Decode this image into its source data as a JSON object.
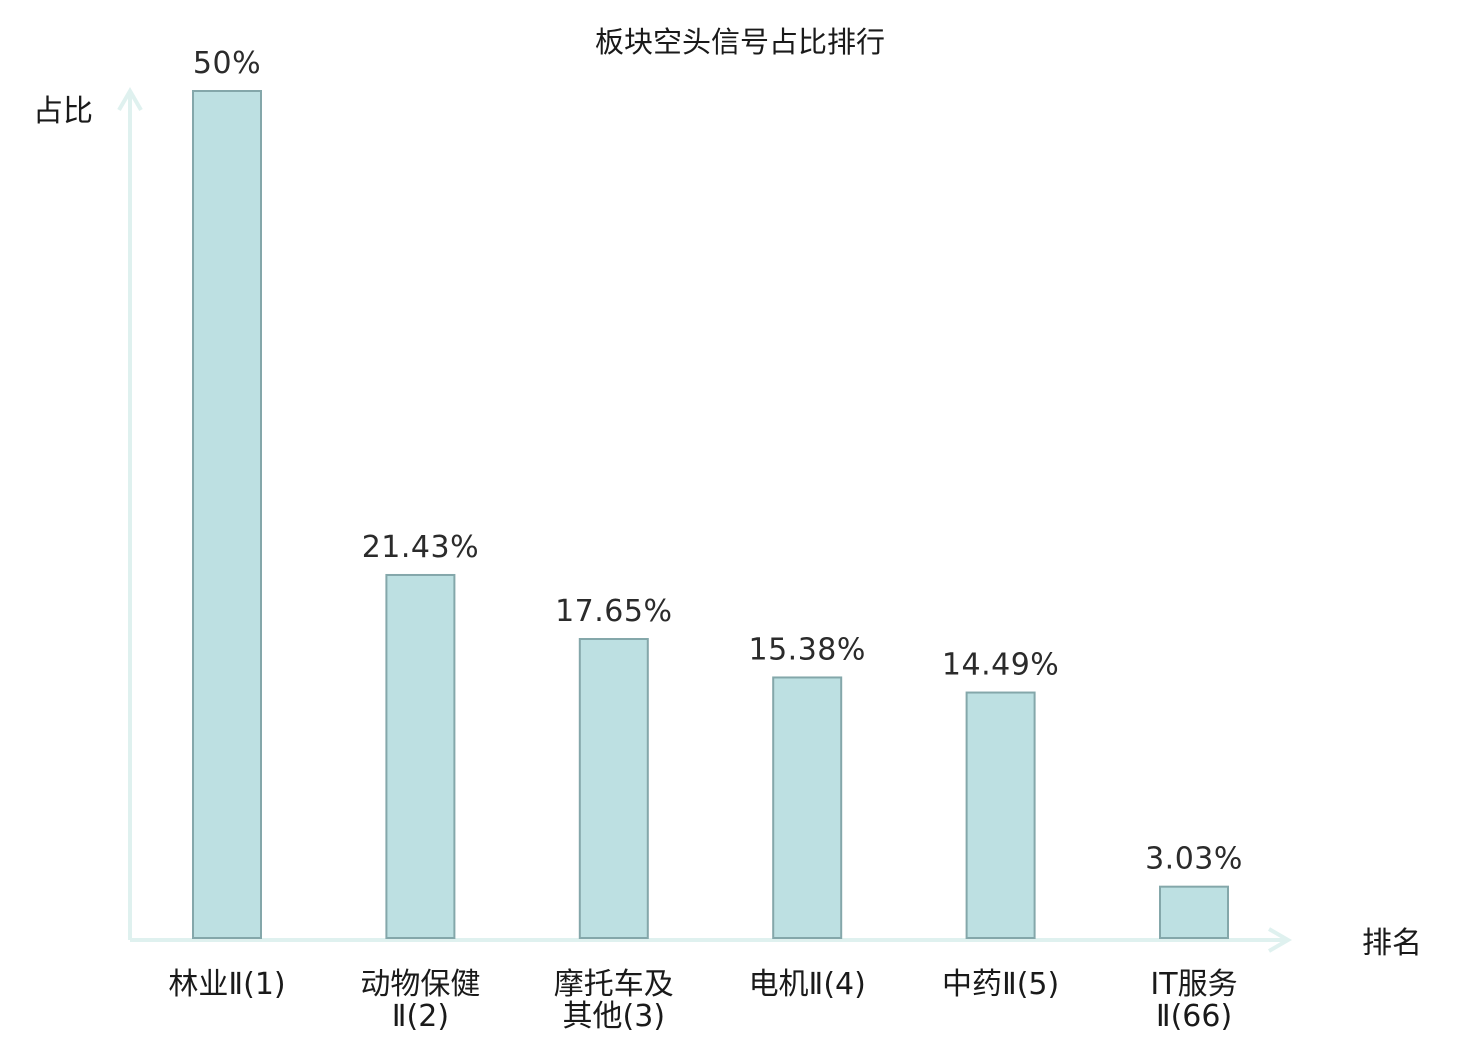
{
  "chart_data": {
    "type": "bar",
    "title": "板块空头信号占比排行",
    "xlabel": "排名",
    "ylabel": "占比",
    "ylim": [
      0,
      50
    ],
    "grid": false,
    "categories": [
      {
        "lines": [
          "林业Ⅱ(1)"
        ],
        "highlight": false
      },
      {
        "lines": [
          "动物保健",
          "Ⅱ(2)"
        ],
        "highlight": false
      },
      {
        "lines": [
          "摩托车及",
          "其他(3)"
        ],
        "highlight": false
      },
      {
        "lines": [
          "电机Ⅱ(4)"
        ],
        "highlight": false
      },
      {
        "lines": [
          "中药Ⅱ(5)"
        ],
        "highlight": false
      },
      {
        "lines": [
          "IT服务",
          "Ⅱ(66)"
        ],
        "highlight": true
      }
    ],
    "values": [
      50,
      21.43,
      17.65,
      15.38,
      14.49,
      3.03
    ],
    "value_labels": [
      "50%",
      "21.43%",
      "17.65%",
      "15.38%",
      "14.49%",
      "3.03%"
    ]
  },
  "colors": {
    "bar_fill": "#bde0e2",
    "bar_stroke": "#84a7aa",
    "axis": "#dff1ef",
    "highlight_text": "#e8201a",
    "text": "#1a1a1a"
  }
}
